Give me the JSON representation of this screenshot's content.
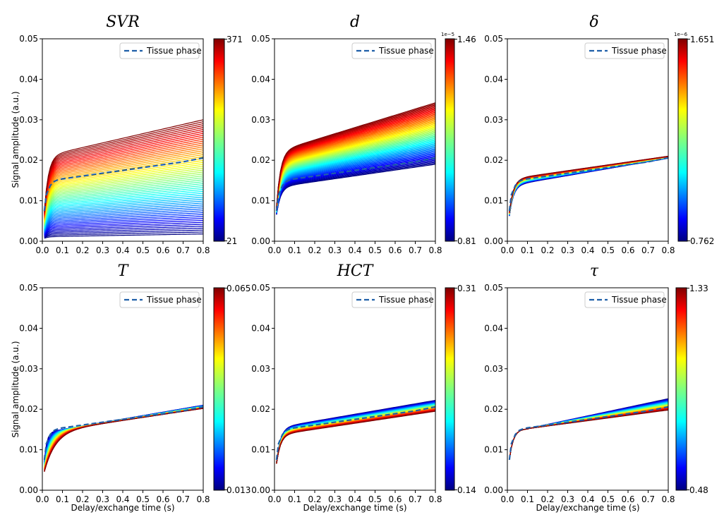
{
  "chart_data": [
    {
      "type": "line",
      "title": "SVR",
      "ylabel": "Signal amplitude (a.u.)",
      "xlabel": "",
      "xlim": [
        0,
        0.8
      ],
      "ylim": [
        0,
        0.05
      ],
      "xticks": [
        "0.0",
        "0.1",
        "0.2",
        "0.3",
        "0.4",
        "0.5",
        "0.6",
        "0.7",
        "0.8"
      ],
      "yticks": [
        "0.00",
        "0.01",
        "0.02",
        "0.03",
        "0.04",
        "0.05"
      ],
      "legend": {
        "label": "Tissue phase",
        "placement": "top-right"
      },
      "colorbar": {
        "min": "21",
        "max": "371",
        "exponent": ""
      },
      "family": {
        "lines": 60,
        "start_low": 0.0008,
        "start_high": 0.0085,
        "plateau_low": 0.0012,
        "plateau_high": 0.022,
        "end_low": 0.0018,
        "end_high": 0.03,
        "tau": 0.02,
        "tau_low": 0.02,
        "tau_high": 0.02
      },
      "tissue": {
        "x": [
          0.01,
          0.02,
          0.04,
          0.06,
          0.08,
          0.1,
          0.2,
          0.3,
          0.4,
          0.5,
          0.6,
          0.7,
          0.8
        ],
        "y": [
          0.0075,
          0.0115,
          0.0138,
          0.0148,
          0.0152,
          0.0154,
          0.0161,
          0.0168,
          0.0175,
          0.0182,
          0.0189,
          0.0196,
          0.0206
        ]
      }
    },
    {
      "type": "line",
      "title": "d",
      "ylabel": "",
      "xlabel": "",
      "xlim": [
        0,
        0.8
      ],
      "ylim": [
        0,
        0.05
      ],
      "xticks": [
        "0.0",
        "0.1",
        "0.2",
        "0.3",
        "0.4",
        "0.5",
        "0.6",
        "0.7",
        "0.8"
      ],
      "yticks": [
        "0.00",
        "0.01",
        "0.02",
        "0.03",
        "0.04",
        "0.05"
      ],
      "legend": {
        "label": "Tissue phase",
        "placement": "top-right"
      },
      "colorbar": {
        "min": "0.81",
        "max": "1.46",
        "exponent": "1e−5"
      },
      "family": {
        "lines": 60,
        "start_low": 0.0072,
        "start_high": 0.0098,
        "plateau_low": 0.014,
        "plateau_high": 0.0235,
        "end_low": 0.019,
        "end_high": 0.0342,
        "tau": 0.02,
        "tau_low": 0.02,
        "tau_high": 0.02
      },
      "tissue": {
        "x": [
          0.01,
          0.02,
          0.04,
          0.06,
          0.08,
          0.1,
          0.2,
          0.3,
          0.4,
          0.5,
          0.6,
          0.7,
          0.8
        ],
        "y": [
          0.0075,
          0.0115,
          0.0138,
          0.0148,
          0.0152,
          0.0154,
          0.0161,
          0.0168,
          0.0175,
          0.0182,
          0.0189,
          0.0196,
          0.0206
        ]
      }
    },
    {
      "type": "line",
      "title": "δ",
      "ylabel": "",
      "xlabel": "",
      "xlim": [
        0,
        0.8
      ],
      "ylim": [
        0,
        0.05
      ],
      "xticks": [
        "0.0",
        "0.1",
        "0.2",
        "0.3",
        "0.4",
        "0.5",
        "0.6",
        "0.7",
        "0.8"
      ],
      "yticks": [
        "0.00",
        "0.01",
        "0.02",
        "0.03",
        "0.04",
        "0.05"
      ],
      "legend": {
        "label": "Tissue phase",
        "placement": "top-right"
      },
      "colorbar": {
        "min": "0.762",
        "max": "1.651",
        "exponent": "1e−6"
      },
      "family": {
        "lines": 40,
        "start_low": 0.007,
        "start_high": 0.0078,
        "plateau_low": 0.0145,
        "plateau_high": 0.016,
        "end_low": 0.0205,
        "end_high": 0.021,
        "tau": 0.02,
        "tau_low": 0.02,
        "tau_high": 0.02
      },
      "tissue": {
        "x": [
          0.01,
          0.02,
          0.04,
          0.06,
          0.08,
          0.1,
          0.2,
          0.3,
          0.4,
          0.5,
          0.6,
          0.7,
          0.8
        ],
        "y": [
          0.0075,
          0.0115,
          0.0138,
          0.0148,
          0.0152,
          0.0154,
          0.0161,
          0.0168,
          0.0175,
          0.0182,
          0.0189,
          0.0196,
          0.0206
        ]
      }
    },
    {
      "type": "line",
      "title": "T",
      "ylabel": "Signal amplitude (a.u.)",
      "xlabel": "Delay/exchange time (s)",
      "xlim": [
        0,
        0.8
      ],
      "ylim": [
        0,
        0.05
      ],
      "xticks": [
        "0.0",
        "0.1",
        "0.2",
        "0.3",
        "0.4",
        "0.5",
        "0.6",
        "0.7",
        "0.8"
      ],
      "yticks": [
        "0.00",
        "0.01",
        "0.02",
        "0.03",
        "0.04",
        "0.05"
      ],
      "legend": {
        "label": "Tissue phase",
        "placement": "top-right"
      },
      "colorbar": {
        "min": "0.013",
        "max": "0.065",
        "exponent": ""
      },
      "family": {
        "lines": 40,
        "start_low": 0.008,
        "start_high": 0.0052,
        "plateau_low": 0.015,
        "plateau_high": 0.015,
        "end_low": 0.021,
        "end_high": 0.0202,
        "tau": 0.02,
        "tau_low": 0.012,
        "tau_high": 0.055
      },
      "tissue": {
        "x": [
          0.01,
          0.02,
          0.04,
          0.06,
          0.08,
          0.1,
          0.2,
          0.3,
          0.4,
          0.5,
          0.6,
          0.7,
          0.8
        ],
        "y": [
          0.0075,
          0.0115,
          0.0138,
          0.0148,
          0.0152,
          0.0154,
          0.0161,
          0.0168,
          0.0175,
          0.0182,
          0.0189,
          0.0196,
          0.0206
        ]
      }
    },
    {
      "type": "line",
      "title": "HCT",
      "ylabel": "",
      "xlabel": "Delay/exchange time (s)",
      "xlim": [
        0,
        0.8
      ],
      "ylim": [
        0,
        0.05
      ],
      "xticks": [
        "0.0",
        "0.1",
        "0.2",
        "0.3",
        "0.4",
        "0.5",
        "0.6",
        "0.7",
        "0.8"
      ],
      "yticks": [
        "0.00",
        "0.01",
        "0.02",
        "0.03",
        "0.04",
        "0.05"
      ],
      "legend": {
        "label": "Tissue phase",
        "placement": "top-right"
      },
      "colorbar": {
        "min": "0.14",
        "max": "0.31",
        "exponent": ""
      },
      "family": {
        "lines": 40,
        "start_low": 0.0078,
        "start_high": 0.0072,
        "plateau_low": 0.0162,
        "plateau_high": 0.0143,
        "end_low": 0.0222,
        "end_high": 0.0195,
        "tau": 0.02,
        "tau_low": 0.02,
        "tau_high": 0.02
      },
      "tissue": {
        "x": [
          0.01,
          0.02,
          0.04,
          0.06,
          0.08,
          0.1,
          0.2,
          0.3,
          0.4,
          0.5,
          0.6,
          0.7,
          0.8
        ],
        "y": [
          0.0075,
          0.0115,
          0.0138,
          0.0148,
          0.0152,
          0.0154,
          0.0161,
          0.0168,
          0.0175,
          0.0182,
          0.0189,
          0.0196,
          0.0206
        ]
      }
    },
    {
      "type": "line",
      "title": "τ",
      "ylabel": "",
      "xlabel": "Delay/exchange time (s)",
      "xlim": [
        0,
        0.8
      ],
      "ylim": [
        0,
        0.05
      ],
      "xticks": [
        "0.0",
        "0.1",
        "0.2",
        "0.3",
        "0.4",
        "0.5",
        "0.6",
        "0.7",
        "0.8"
      ],
      "yticks": [
        "0.00",
        "0.01",
        "0.02",
        "0.03",
        "0.04",
        "0.05"
      ],
      "legend": {
        "label": "Tissue phase",
        "placement": "top-right"
      },
      "colorbar": {
        "min": "0.48",
        "max": "1.33",
        "exponent": ""
      },
      "family": {
        "lines": 40,
        "start_low": 0.0076,
        "start_high": 0.0076,
        "plateau_low": 0.0152,
        "plateau_high": 0.0152,
        "end_low": 0.0226,
        "end_high": 0.0198,
        "tau": 0.02,
        "tau_low": 0.02,
        "tau_high": 0.02,
        "fan_from": 0.1
      },
      "tissue": {
        "x": [
          0.01,
          0.02,
          0.04,
          0.06,
          0.08,
          0.1,
          0.2,
          0.3,
          0.4,
          0.5,
          0.6,
          0.7,
          0.8
        ],
        "y": [
          0.0075,
          0.0115,
          0.0138,
          0.0148,
          0.0152,
          0.0154,
          0.0161,
          0.0168,
          0.0175,
          0.0182,
          0.0189,
          0.0196,
          0.0206
        ]
      }
    }
  ]
}
